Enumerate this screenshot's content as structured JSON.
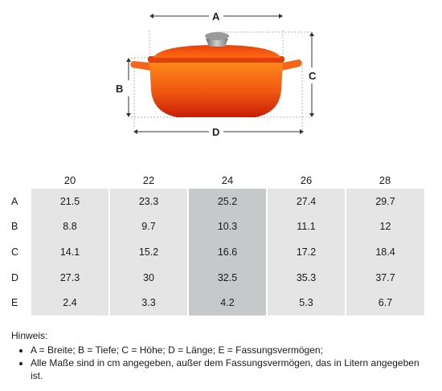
{
  "figure": {
    "labels": {
      "a": "A",
      "b": "B",
      "c": "C",
      "d": "D"
    }
  },
  "table": {
    "columns": [
      "20",
      "22",
      "24",
      "26",
      "28"
    ],
    "highlight_column": "24",
    "rows": [
      {
        "label": "A",
        "values": [
          "21.5",
          "23.3",
          "25.2",
          "27.4",
          "29.7"
        ]
      },
      {
        "label": "B",
        "values": [
          "8.8",
          "9.7",
          "10.3",
          "11.1",
          "12"
        ]
      },
      {
        "label": "C",
        "values": [
          "14.1",
          "15.2",
          "16.6",
          "17.2",
          "18.4"
        ]
      },
      {
        "label": "D",
        "values": [
          "27.3",
          "30",
          "32.5",
          "35.3",
          "37.7"
        ]
      },
      {
        "label": "E",
        "values": [
          "2.4",
          "3.3",
          "4.2",
          "5.3",
          "6.7"
        ]
      }
    ],
    "cell_color": "#e5e5e5",
    "highlight_color": "#c6c9ca"
  },
  "notes": {
    "heading": "Hinweis:",
    "items": [
      "A = Breite; B = Tiefe; C = Höhe; D = Länge; E = Fassungsvermögen;",
      "Alle Maße sind in cm angegeben, außer dem Fassungsvermögen, das in Litern angegeben ist."
    ]
  }
}
